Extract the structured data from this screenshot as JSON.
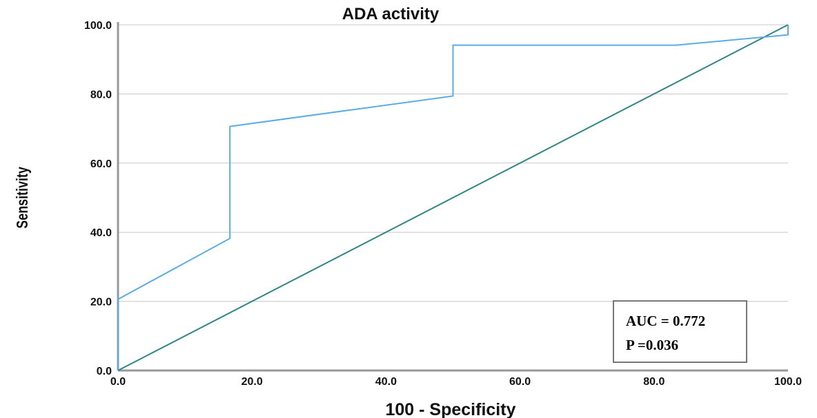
{
  "chart_data": {
    "type": "line",
    "title": "ADA activity",
    "xlabel": "100 - Specificity",
    "ylabel": "Sensitivity",
    "xlim": [
      0,
      100
    ],
    "ylim": [
      0,
      100
    ],
    "x_ticks": [
      "0.0",
      "20.0",
      "40.0",
      "60.0",
      "80.0",
      "100.0"
    ],
    "y_ticks": [
      "0.0",
      "20.0",
      "40.0",
      "60.0",
      "80.0",
      "100.0"
    ],
    "grid": "horizontal",
    "series": [
      {
        "color": "#5aace6",
        "points": [
          [
            0,
            0
          ],
          [
            0,
            20.6
          ],
          [
            16.7,
            38.2
          ],
          [
            16.7,
            70.6
          ],
          [
            50,
            79.4
          ],
          [
            50,
            94.1
          ],
          [
            83.3,
            94.1
          ],
          [
            100,
            97.1
          ],
          [
            100,
            100
          ]
        ]
      },
      {
        "color": "#2e8585",
        "points": [
          [
            0,
            0
          ],
          [
            100,
            100
          ]
        ]
      }
    ],
    "annotations": [
      "AUC = 0.772",
      "P =0.036"
    ]
  }
}
